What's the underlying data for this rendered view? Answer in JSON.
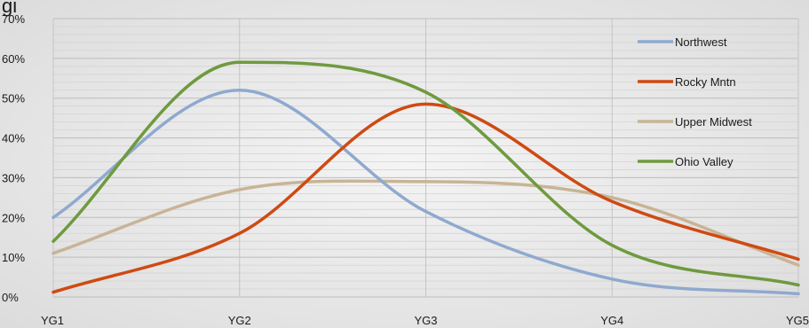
{
  "chart_data": {
    "type": "line",
    "title_partial": "gi",
    "x": [
      "YG1",
      "YG2",
      "YG3",
      "YG4",
      "YG5"
    ],
    "ylim": [
      0,
      70
    ],
    "yticks": [
      0,
      10,
      20,
      30,
      40,
      50,
      60,
      70
    ],
    "ytick_labels": [
      "0%",
      "10%",
      "20%",
      "30%",
      "40%",
      "50%",
      "60%",
      "70%"
    ],
    "grid": true,
    "minor_grid": true,
    "legend_position": "top-right",
    "series": [
      {
        "name": "Northwest",
        "color": "#8fa9cf",
        "values": [
          20,
          52,
          21.5,
          4.5,
          0.8
        ]
      },
      {
        "name": "Rocky Mntn",
        "color": "#cf4a12",
        "values": [
          1.2,
          16,
          48.5,
          24,
          9.5
        ]
      },
      {
        "name": "Upper Midwest",
        "color": "#c8b496",
        "values": [
          11,
          27,
          29,
          25,
          8
        ]
      },
      {
        "name": "Ohio Valley",
        "color": "#6f9a3f",
        "values": [
          14,
          59,
          51.5,
          13,
          3
        ]
      }
    ]
  }
}
